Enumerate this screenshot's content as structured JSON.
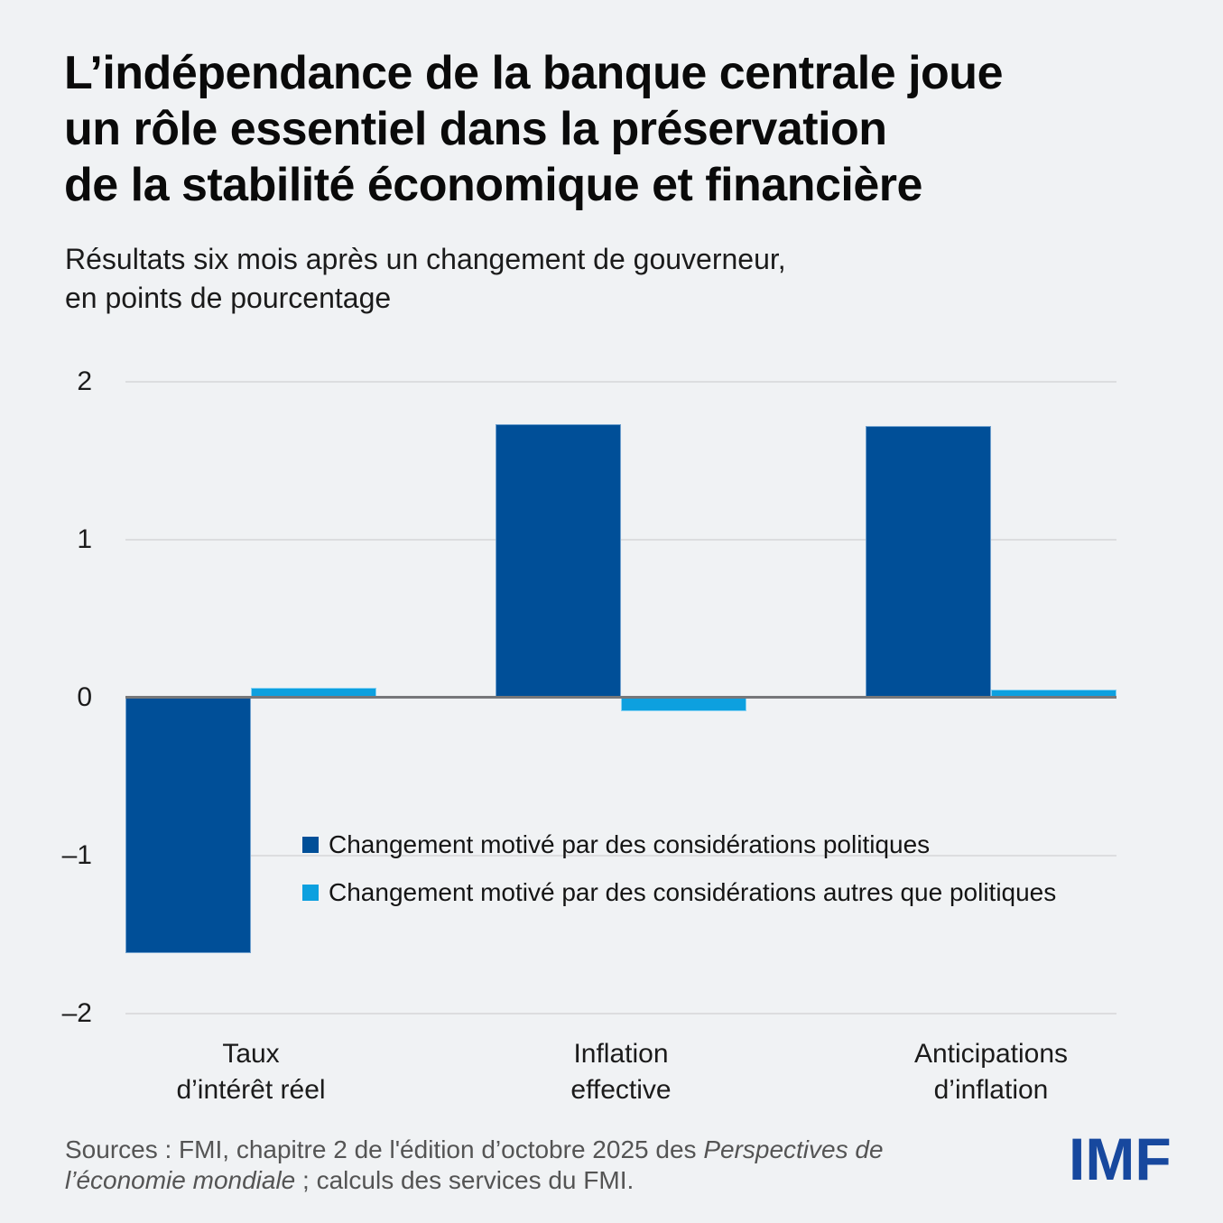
{
  "header": {
    "title_lines": [
      "L’indépendance de la banque centrale joue",
      "un rôle essentiel dans la préservation",
      "de la stabilité économique et financière"
    ],
    "subtitle_lines": [
      "Résultats six mois après un changement de gouverneur,",
      "en points de pourcentage"
    ]
  },
  "chart_data": {
    "type": "bar",
    "title": "L’indépendance de la banque centrale joue un rôle essentiel dans la préservation de la stabilité économique et financière",
    "subtitle": "Résultats six mois après un changement de gouverneur, en points de pourcentage",
    "categories": [
      "Taux d’intérêt réel",
      "Inflation effective",
      "Anticipations d’inflation"
    ],
    "category_label_lines": [
      [
        "Taux",
        "d’intérêt réel"
      ],
      [
        "Inflation",
        "effective"
      ],
      [
        "Anticipations",
        "d’inflation"
      ]
    ],
    "series": [
      {
        "name": "Changement motivé par des considérations politiques",
        "color": "#004F98",
        "values": [
          -1.62,
          1.73,
          1.72
        ]
      },
      {
        "name": "Changement motivé par des considérations autres que politiques",
        "color": "#0DA0DF",
        "values": [
          0.06,
          -0.09,
          0.05
        ]
      }
    ],
    "xlabel": "",
    "ylabel": "",
    "ylim": [
      -2,
      2
    ],
    "yticks": [
      2,
      1,
      0,
      -1,
      -2
    ],
    "grid": true,
    "legend_position": "inside-lower-left"
  },
  "footer": {
    "sources_part1": "Sources : FMI, chapitre 2 de l'édition d’octobre 2025 des ",
    "sources_italic": "Perspectives de l’économie mondiale",
    "sources_part2": " ; calculs des services du FMI.",
    "logo_text": "IMF"
  },
  "colors": {
    "background": "#F0F2F4",
    "dark_blue": "#004F98",
    "light_blue": "#0DA0DF",
    "gridline": "#DCDDDF",
    "zero_line": "#76777A",
    "title_text": "#0A0A0A",
    "body_text": "#1B1B1B",
    "source_text": "#545454",
    "logo_blue": "#17489E"
  }
}
